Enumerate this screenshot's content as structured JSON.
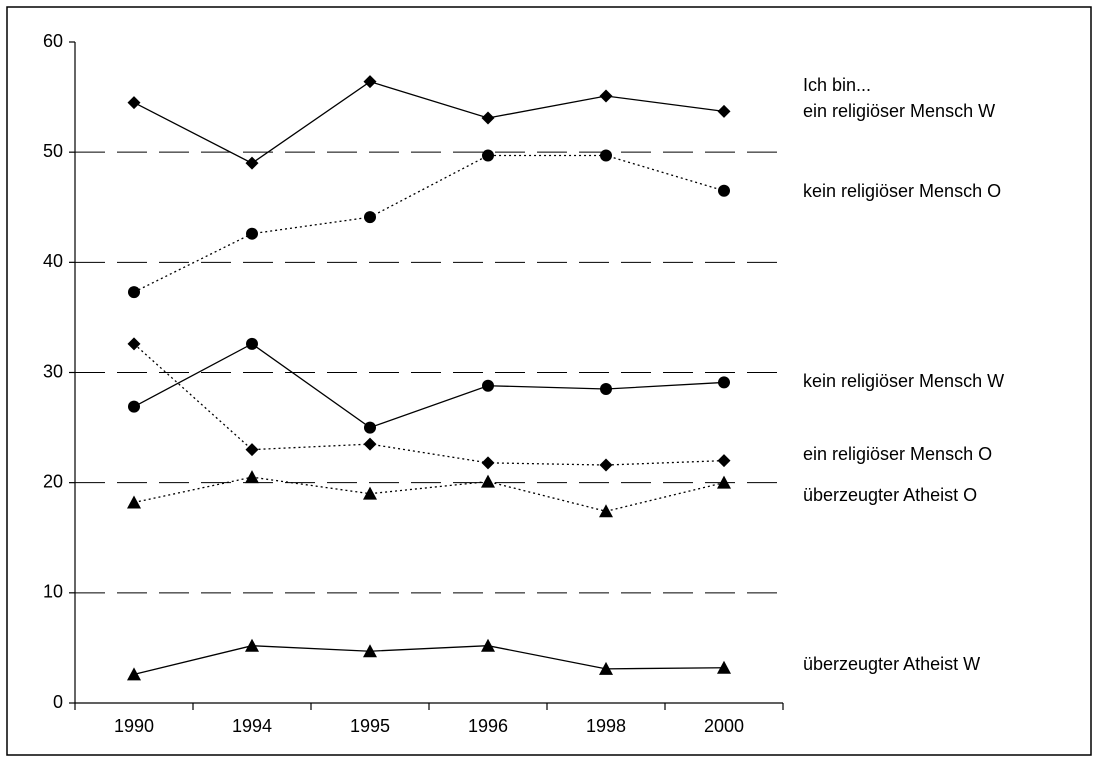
{
  "chart_data": {
    "type": "line",
    "annotation": "Ich bin...",
    "categories": [
      "1990",
      "1994",
      "1995",
      "1996",
      "1998",
      "2000"
    ],
    "series": [
      {
        "name": "ein religiöser Mensch W",
        "color": "#000000",
        "line": "solid",
        "marker": "diamond",
        "values": [
          54.5,
          49.0,
          56.4,
          53.1,
          55.1,
          53.7
        ]
      },
      {
        "name": "kein religiöser Mensch O",
        "color": "#000000",
        "line": "dotted",
        "marker": "circle",
        "values": [
          37.3,
          42.6,
          44.1,
          49.7,
          49.7,
          46.5
        ]
      },
      {
        "name": "kein religiöser Mensch W",
        "color": "#000000",
        "line": "solid",
        "marker": "circle",
        "values": [
          26.9,
          32.6,
          25.0,
          28.8,
          28.5,
          29.1
        ]
      },
      {
        "name": "ein religiöser Mensch O",
        "color": "#000000",
        "line": "dotted",
        "marker": "diamond",
        "values": [
          32.6,
          23.0,
          23.5,
          21.8,
          21.6,
          22.0
        ]
      },
      {
        "name": "überzeugter Atheist O",
        "color": "#000000",
        "line": "dotted",
        "marker": "triangle",
        "values": [
          18.2,
          20.5,
          19.0,
          20.1,
          17.4,
          20.0
        ]
      },
      {
        "name": "überzeugter Atheist W",
        "color": "#000000",
        "line": "solid",
        "marker": "triangle",
        "values": [
          2.6,
          5.2,
          4.7,
          5.2,
          3.1,
          3.2
        ]
      }
    ],
    "ylim": [
      0,
      60
    ],
    "yticks": [
      0,
      10,
      20,
      30,
      40,
      50,
      60
    ],
    "grid": true
  }
}
